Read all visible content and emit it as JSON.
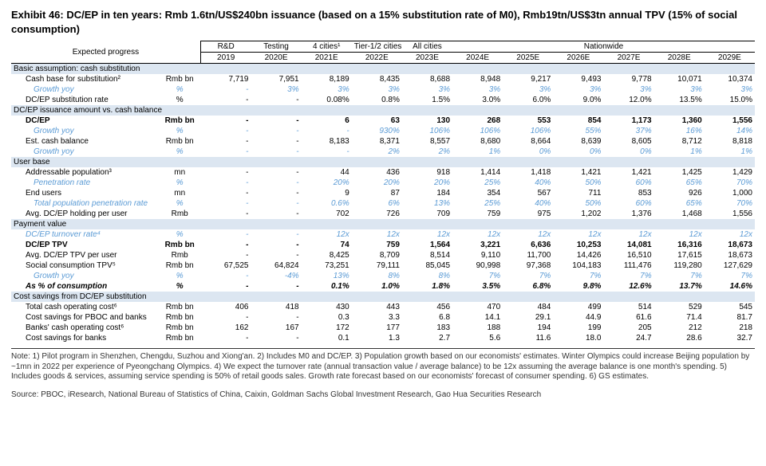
{
  "title": "Exhibit 46: DC/EP in ten years: Rmb 1.6tn/US$240bn issuance (based on a 15% substitution rate of M0), Rmb19tn/US$3tn annual TPV (15% of social consumption)",
  "header": {
    "expected": "Expected progress",
    "groups": [
      "R&D",
      "Testing",
      "4 cities¹",
      "Tier-1/2 cities",
      "All cities",
      "Nationwide"
    ],
    "years": [
      "2019",
      "2020E",
      "2021E",
      "2022E",
      "2023E",
      "2024E",
      "2025E",
      "2026E",
      "2027E",
      "2028E",
      "2029E"
    ]
  },
  "sections": [
    {
      "type": "section",
      "label": "Basic assumption: cash substitution"
    },
    {
      "label": "Cash base for substitution²",
      "indent": 1,
      "unit": "Rmb bn",
      "vals": [
        "7,719",
        "7,951",
        "8,189",
        "8,435",
        "8,688",
        "8,948",
        "9,217",
        "9,493",
        "9,778",
        "10,071",
        "10,374"
      ]
    },
    {
      "label": "Growth yoy",
      "indent": 2,
      "unit": "%",
      "italic": true,
      "vals": [
        "-",
        "3%",
        "3%",
        "3%",
        "3%",
        "3%",
        "3%",
        "3%",
        "3%",
        "3%",
        "3%"
      ]
    },
    {
      "label": "DC/EP substitution rate",
      "indent": 1,
      "unit": "%",
      "vals": [
        "-",
        "-",
        "0.08%",
        "0.8%",
        "1.5%",
        "3.0%",
        "6.0%",
        "9.0%",
        "12.0%",
        "13.5%",
        "15.0%"
      ]
    },
    {
      "type": "section",
      "label": "DC/EP issuance amount vs. cash balance"
    },
    {
      "label": "DC/EP",
      "indent": 1,
      "unit": "Rmb bn",
      "bold": true,
      "vals": [
        "-",
        "-",
        "6",
        "63",
        "130",
        "268",
        "553",
        "854",
        "1,173",
        "1,360",
        "1,556"
      ]
    },
    {
      "label": "Growth yoy",
      "indent": 2,
      "unit": "%",
      "italic": true,
      "vals": [
        "-",
        "-",
        "-",
        "930%",
        "106%",
        "106%",
        "106%",
        "55%",
        "37%",
        "16%",
        "14%"
      ]
    },
    {
      "label": "Est. cash balance",
      "indent": 1,
      "unit": "Rmb bn",
      "vals": [
        "-",
        "-",
        "8,183",
        "8,371",
        "8,557",
        "8,680",
        "8,664",
        "8,639",
        "8,605",
        "8,712",
        "8,818"
      ]
    },
    {
      "label": "Growth yoy",
      "indent": 2,
      "unit": "%",
      "italic": true,
      "vals": [
        "-",
        "-",
        "-",
        "2%",
        "2%",
        "1%",
        "0%",
        "0%",
        "0%",
        "1%",
        "1%"
      ]
    },
    {
      "type": "section",
      "label": "User base"
    },
    {
      "label": "Addressable population³",
      "indent": 1,
      "unit": "mn",
      "vals": [
        "-",
        "-",
        "44",
        "436",
        "918",
        "1,414",
        "1,418",
        "1,421",
        "1,421",
        "1,425",
        "1,429"
      ]
    },
    {
      "label": "Penetration rate",
      "indent": 2,
      "unit": "%",
      "italic": true,
      "vals": [
        "-",
        "-",
        "20%",
        "20%",
        "20%",
        "25%",
        "40%",
        "50%",
        "60%",
        "65%",
        "70%"
      ]
    },
    {
      "label": "End users",
      "indent": 1,
      "unit": "mn",
      "vals": [
        "-",
        "-",
        "9",
        "87",
        "184",
        "354",
        "567",
        "711",
        "853",
        "926",
        "1,000"
      ]
    },
    {
      "label": "Total population penetration rate",
      "indent": 2,
      "unit": "%",
      "italic": true,
      "vals": [
        "-",
        "-",
        "0.6%",
        "6%",
        "13%",
        "25%",
        "40%",
        "50%",
        "60%",
        "65%",
        "70%"
      ]
    },
    {
      "label": "Avg. DC/EP holding per user",
      "indent": 1,
      "unit": "Rmb",
      "vals": [
        "-",
        "-",
        "702",
        "726",
        "709",
        "759",
        "975",
        "1,202",
        "1,376",
        "1,468",
        "1,556"
      ]
    },
    {
      "type": "section",
      "label": "Payment value"
    },
    {
      "label": "DC/EP turnover rate⁴",
      "indent": 1,
      "unit": "%",
      "italic": true,
      "vals": [
        "-",
        "-",
        "12x",
        "12x",
        "12x",
        "12x",
        "12x",
        "12x",
        "12x",
        "12x",
        "12x"
      ]
    },
    {
      "label": "DC/EP TPV",
      "indent": 1,
      "unit": "Rmb bn",
      "bold": true,
      "vals": [
        "-",
        "-",
        "74",
        "759",
        "1,564",
        "3,221",
        "6,636",
        "10,253",
        "14,081",
        "16,316",
        "18,673"
      ]
    },
    {
      "label": "Avg. DC/EP TPV per user",
      "indent": 1,
      "unit": "Rmb",
      "vals": [
        "-",
        "-",
        "8,425",
        "8,709",
        "8,514",
        "9,110",
        "11,700",
        "14,426",
        "16,510",
        "17,615",
        "18,673"
      ]
    },
    {
      "label": "Social consumption TPV⁵",
      "indent": 1,
      "unit": "Rmb bn",
      "vals": [
        "67,525",
        "64,824",
        "73,251",
        "79,111",
        "85,045",
        "90,998",
        "97,368",
        "104,183",
        "111,476",
        "119,280",
        "127,629"
      ]
    },
    {
      "label": "Growth yoy",
      "indent": 2,
      "unit": "%",
      "italic": true,
      "vals": [
        "-",
        "-4%",
        "13%",
        "8%",
        "8%",
        "7%",
        "7%",
        "7%",
        "7%",
        "7%",
        "7%"
      ]
    },
    {
      "label": "As % of consumption",
      "indent": 1,
      "unit": "%",
      "bold": true,
      "italicBold": true,
      "vals": [
        "-",
        "-",
        "0.1%",
        "1.0%",
        "1.8%",
        "3.5%",
        "6.8%",
        "9.8%",
        "12.6%",
        "13.7%",
        "14.6%"
      ]
    },
    {
      "type": "section",
      "label": "Cost savings from DC/EP substitution"
    },
    {
      "label": "Total cash operating cost⁶",
      "indent": 1,
      "unit": "Rmb bn",
      "vals": [
        "406",
        "418",
        "430",
        "443",
        "456",
        "470",
        "484",
        "499",
        "514",
        "529",
        "545"
      ]
    },
    {
      "label": "Cost savings for PBOC and banks",
      "indent": 1,
      "unit": "Rmb bn",
      "vals": [
        "-",
        "-",
        "0.3",
        "3.3",
        "6.8",
        "14.1",
        "29.1",
        "44.9",
        "61.6",
        "71.4",
        "81.7"
      ]
    },
    {
      "label": "Banks' cash operating cost⁶",
      "indent": 1,
      "unit": "Rmb bn",
      "vals": [
        "162",
        "167",
        "172",
        "177",
        "183",
        "188",
        "194",
        "199",
        "205",
        "212",
        "218"
      ]
    },
    {
      "label": "Cost savings for banks",
      "indent": 1,
      "unit": "Rmb bn",
      "vals": [
        "-",
        "-",
        "0.1",
        "1.3",
        "2.7",
        "5.6",
        "11.6",
        "18.0",
        "24.7",
        "28.6",
        "32.7"
      ]
    }
  ],
  "note": "Note: 1) Pilot program in Shenzhen, Chengdu, Suzhou and Xiong'an. 2) Includes M0 and DC/EP. 3) Population growth based on our economists' estimates. Winter Olympics could increase Beijing population by ~1mn in 2022 per experience of Pyeongchang Olympics. 4) We expect the turnover rate (annual transaction value / average balance) to be 12x assuming the average balance is one month's spending. 5) Includes goods & services, assuming service spending is 50% of retail goods sales. Growth rate forecast based on our economists' forecast of consumer spending. 6) GS estimates.",
  "source": "Source: PBOC, iResearch, National Bureau of Statistics of China, Caixin, Goldman Sachs Global Investment Research, Gao Hua Securities Research",
  "colors": {
    "section_bg": "#dce6f1",
    "italic_blue": "#5b9bd5",
    "text": "#000000"
  }
}
